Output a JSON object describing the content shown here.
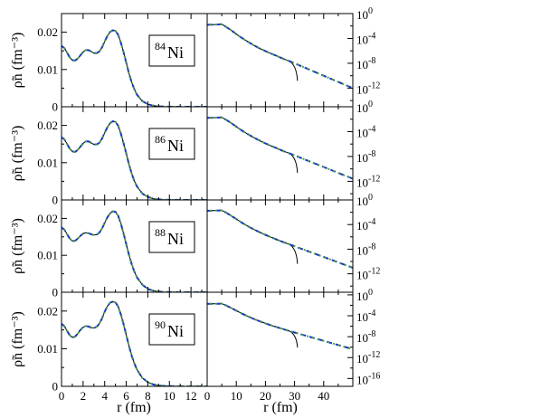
{
  "figure": {
    "xlabel_left": "r (fm)",
    "xlabel_right": "r (fm)",
    "ylabel_left": "ρ̃n (fm⁻³)"
  },
  "chart_data": [
    {
      "panel": "linear",
      "type": "line",
      "nucleus_mass": "84",
      "nucleus_symbol": "Ni",
      "xlim": [
        0,
        13.5
      ],
      "ylim": [
        0,
        0.025
      ],
      "x_ticks": [
        0,
        2,
        4,
        6,
        8,
        10,
        12
      ],
      "y_ticks": [
        0,
        0.01,
        0.02
      ],
      "y_tick_labels": [
        "0",
        "0.01",
        "0.02"
      ],
      "x": [
        0,
        0.25,
        0.5,
        0.75,
        1.0,
        1.25,
        1.5,
        1.75,
        2.0,
        2.25,
        2.5,
        2.75,
        3.0,
        3.25,
        3.5,
        3.75,
        4.0,
        4.25,
        4.5,
        4.75,
        5.0,
        5.25,
        5.5,
        5.75,
        6.0,
        6.25,
        6.5,
        6.75,
        7.0,
        7.5,
        8.0,
        8.5,
        9.0,
        9.5,
        10.0,
        10.5,
        11.0,
        11.5,
        12.0,
        12.5,
        13.0,
        13.5
      ],
      "y": [
        0.0163,
        0.0158,
        0.0146,
        0.0133,
        0.0125,
        0.0124,
        0.0129,
        0.0138,
        0.0147,
        0.0152,
        0.0152,
        0.0148,
        0.0144,
        0.0144,
        0.0148,
        0.0159,
        0.0175,
        0.019,
        0.0201,
        0.0205,
        0.0204,
        0.0193,
        0.0172,
        0.0146,
        0.0118,
        0.009,
        0.0066,
        0.0047,
        0.0032,
        0.0015,
        0.0007,
        0.0003,
        0.00013,
        5e-05,
        2e-05,
        1e-05,
        0,
        0,
        0,
        0,
        0,
        0
      ]
    },
    {
      "panel": "log",
      "type": "line",
      "xlim": [
        0,
        50
      ],
      "ylim_log10": [
        -15,
        0
      ],
      "x_ticks": [
        0,
        10,
        20,
        30,
        40
      ],
      "y_ticks": [
        "10^0",
        "10^-4",
        "10^-8",
        "10^-12"
      ],
      "y_tick_base": "10",
      "y_tick_exps": [
        "0",
        "-4",
        "-8",
        "-12"
      ],
      "cutoff_x": 31,
      "x": [
        0,
        2,
        4,
        5,
        6,
        8,
        10,
        12,
        14,
        16,
        18,
        20,
        22,
        24,
        26,
        28,
        30,
        32,
        34,
        36,
        38,
        40,
        42,
        44,
        46,
        48,
        50
      ],
      "log10_y": [
        -1.8,
        -1.78,
        -1.75,
        -1.72,
        -2.0,
        -2.6,
        -3.3,
        -3.95,
        -4.55,
        -5.1,
        -5.6,
        -6.05,
        -6.45,
        -6.85,
        -7.25,
        -7.62,
        -8.0,
        -8.4,
        -8.8,
        -9.2,
        -9.6,
        -10.0,
        -10.4,
        -10.8,
        -11.2,
        -11.6,
        -12.0
      ]
    },
    {
      "panel": "linear",
      "type": "line",
      "nucleus_mass": "86",
      "nucleus_symbol": "Ni",
      "xlim": [
        0,
        13.5
      ],
      "ylim": [
        0,
        0.025
      ],
      "x_ticks": [
        0,
        2,
        4,
        6,
        8,
        10,
        12
      ],
      "y_ticks": [
        0,
        0.01,
        0.02
      ],
      "y_tick_labels": [
        "0",
        "0.01",
        "0.02"
      ],
      "x": [
        0,
        0.25,
        0.5,
        0.75,
        1.0,
        1.25,
        1.5,
        1.75,
        2.0,
        2.25,
        2.5,
        2.75,
        3.0,
        3.25,
        3.5,
        3.75,
        4.0,
        4.25,
        4.5,
        4.75,
        5.0,
        5.25,
        5.5,
        5.75,
        6.0,
        6.25,
        6.5,
        6.75,
        7.0,
        7.5,
        8.0,
        8.5,
        9.0,
        9.5,
        10.0,
        10.5,
        11.0,
        11.5,
        12.0,
        12.5,
        13.0,
        13.5
      ],
      "y": [
        0.0168,
        0.0163,
        0.0151,
        0.0138,
        0.013,
        0.0129,
        0.0134,
        0.0143,
        0.0152,
        0.0157,
        0.0157,
        0.0153,
        0.0149,
        0.0149,
        0.0153,
        0.0164,
        0.018,
        0.0195,
        0.0206,
        0.0211,
        0.021,
        0.0199,
        0.0178,
        0.0152,
        0.0124,
        0.0096,
        0.0071,
        0.0051,
        0.0036,
        0.0017,
        0.0008,
        0.00035,
        0.00015,
        6e-05,
        3e-05,
        1e-05,
        0,
        0,
        0,
        0,
        0,
        0
      ]
    },
    {
      "panel": "log",
      "type": "line",
      "xlim": [
        0,
        50
      ],
      "ylim_log10": [
        -15,
        0
      ],
      "x_ticks": [
        0,
        10,
        20,
        30,
        40
      ],
      "y_ticks": [
        "10^0",
        "10^-4",
        "10^-8",
        "10^-12"
      ],
      "y_tick_base": "10",
      "y_tick_exps": [
        "0",
        "-4",
        "-8",
        "-12"
      ],
      "cutoff_x": 31,
      "x": [
        0,
        2,
        4,
        5,
        6,
        8,
        10,
        12,
        14,
        16,
        18,
        20,
        22,
        24,
        26,
        28,
        30,
        32,
        34,
        36,
        38,
        40,
        42,
        44,
        46,
        48,
        50
      ],
      "log10_y": [
        -1.78,
        -1.76,
        -1.73,
        -1.7,
        -1.95,
        -2.55,
        -3.2,
        -3.85,
        -4.42,
        -4.95,
        -5.45,
        -5.9,
        -6.3,
        -6.7,
        -7.1,
        -7.45,
        -7.82,
        -8.2,
        -8.58,
        -8.95,
        -9.32,
        -9.7,
        -10.08,
        -10.45,
        -10.83,
        -11.2,
        -11.58
      ]
    },
    {
      "panel": "linear",
      "type": "line",
      "nucleus_mass": "88",
      "nucleus_symbol": "Ni",
      "xlim": [
        0,
        13.5
      ],
      "ylim": [
        0,
        0.025
      ],
      "x_ticks": [
        0,
        2,
        4,
        6,
        8,
        10,
        12
      ],
      "y_ticks": [
        0,
        0.01,
        0.02
      ],
      "y_tick_labels": [
        "0",
        "0.01",
        "0.02"
      ],
      "x": [
        0,
        0.25,
        0.5,
        0.75,
        1.0,
        1.25,
        1.5,
        1.75,
        2.0,
        2.25,
        2.5,
        2.75,
        3.0,
        3.25,
        3.5,
        3.75,
        4.0,
        4.25,
        4.5,
        4.75,
        5.0,
        5.25,
        5.5,
        5.75,
        6.0,
        6.25,
        6.5,
        6.75,
        7.0,
        7.5,
        8.0,
        8.5,
        9.0,
        9.5,
        10.0,
        10.5,
        11.0,
        11.5,
        12.0,
        12.5,
        13.0,
        13.5
      ],
      "y": [
        0.0175,
        0.017,
        0.0158,
        0.0146,
        0.0139,
        0.0139,
        0.0145,
        0.0153,
        0.0159,
        0.0161,
        0.016,
        0.0157,
        0.0155,
        0.0156,
        0.0161,
        0.0172,
        0.0188,
        0.0203,
        0.0214,
        0.0219,
        0.0218,
        0.0207,
        0.0186,
        0.0159,
        0.013,
        0.0102,
        0.0077,
        0.0056,
        0.004,
        0.002,
        0.0009,
        0.0004,
        0.00018,
        7e-05,
        3e-05,
        1e-05,
        0,
        0,
        0,
        0,
        0,
        0
      ]
    },
    {
      "panel": "log",
      "type": "line",
      "xlim": [
        0,
        50
      ],
      "ylim_log10": [
        -15,
        0
      ],
      "x_ticks": [
        0,
        10,
        20,
        30,
        40
      ],
      "y_ticks": [
        "10^0",
        "10^-4",
        "10^-8",
        "10^-12"
      ],
      "y_tick_base": "10",
      "y_tick_exps": [
        "0",
        "-4",
        "-8",
        "-12"
      ],
      "cutoff_x": 31,
      "x": [
        0,
        2,
        4,
        5,
        6,
        8,
        10,
        12,
        14,
        16,
        18,
        20,
        22,
        24,
        26,
        28,
        30,
        32,
        34,
        36,
        38,
        40,
        42,
        44,
        46,
        48,
        50
      ],
      "log10_y": [
        -1.76,
        -1.74,
        -1.71,
        -1.69,
        -1.92,
        -2.5,
        -3.1,
        -3.72,
        -4.28,
        -4.78,
        -5.25,
        -5.68,
        -6.07,
        -6.45,
        -6.82,
        -7.18,
        -7.52,
        -7.88,
        -8.22,
        -8.57,
        -8.92,
        -9.27,
        -9.62,
        -9.97,
        -10.32,
        -10.67,
        -11.02
      ]
    },
    {
      "panel": "linear",
      "type": "line",
      "nucleus_mass": "90",
      "nucleus_symbol": "Ni",
      "xlim": [
        0,
        13.5
      ],
      "ylim": [
        0,
        0.025
      ],
      "x_ticks": [
        0,
        2,
        4,
        6,
        8,
        10,
        12
      ],
      "y_ticks": [
        0,
        0.01,
        0.02
      ],
      "y_tick_labels": [
        "0",
        "0.01",
        "0.02"
      ],
      "x": [
        0,
        0.25,
        0.5,
        0.75,
        1.0,
        1.25,
        1.5,
        1.75,
        2.0,
        2.25,
        2.5,
        2.75,
        3.0,
        3.25,
        3.5,
        3.75,
        4.0,
        4.25,
        4.5,
        4.75,
        5.0,
        5.25,
        5.5,
        5.75,
        6.0,
        6.25,
        6.5,
        6.75,
        7.0,
        7.5,
        8.0,
        8.5,
        9.0,
        9.5,
        10.0,
        10.5,
        11.0,
        11.5,
        12.0,
        12.5,
        13.0,
        13.5
      ],
      "y": [
        0.0166,
        0.016,
        0.0148,
        0.0136,
        0.013,
        0.0132,
        0.014,
        0.015,
        0.0157,
        0.016,
        0.0159,
        0.0156,
        0.0155,
        0.0158,
        0.0166,
        0.018,
        0.0198,
        0.0213,
        0.0222,
        0.0225,
        0.0223,
        0.0212,
        0.0191,
        0.0165,
        0.0136,
        0.0108,
        0.0082,
        0.0061,
        0.0044,
        0.0022,
        0.0011,
        0.0005,
        0.00022,
        9e-05,
        4e-05,
        2e-05,
        1e-05,
        0,
        0,
        0,
        0,
        0
      ]
    },
    {
      "panel": "log",
      "type": "line",
      "xlim": [
        0,
        50
      ],
      "ylim_log10": [
        -17.5,
        0.5
      ],
      "x_ticks": [
        0,
        10,
        20,
        30,
        40
      ],
      "x_tick_labels": [
        "0",
        "10",
        "20",
        "30",
        "40"
      ],
      "y_ticks": [
        "10^0",
        "10^-4",
        "10^-8",
        "10^-12",
        "10^-16"
      ],
      "y_tick_base": "10",
      "y_tick_exps": [
        "0",
        "-4",
        "-8",
        "-12",
        "-16"
      ],
      "cutoff_x": 31,
      "x": [
        0,
        2,
        4,
        5,
        6,
        8,
        10,
        12,
        14,
        16,
        18,
        20,
        22,
        24,
        26,
        28,
        30,
        32,
        34,
        36,
        38,
        40,
        42,
        44,
        46,
        48,
        50
      ],
      "log10_y": [
        -1.74,
        -1.72,
        -1.69,
        -1.67,
        -1.9,
        -2.45,
        -3.02,
        -3.6,
        -4.12,
        -4.6,
        -5.05,
        -5.46,
        -5.84,
        -6.2,
        -6.55,
        -6.88,
        -7.2,
        -7.52,
        -7.84,
        -8.16,
        -8.48,
        -8.8,
        -9.12,
        -9.44,
        -9.76,
        -10.08,
        -10.4
      ]
    }
  ]
}
